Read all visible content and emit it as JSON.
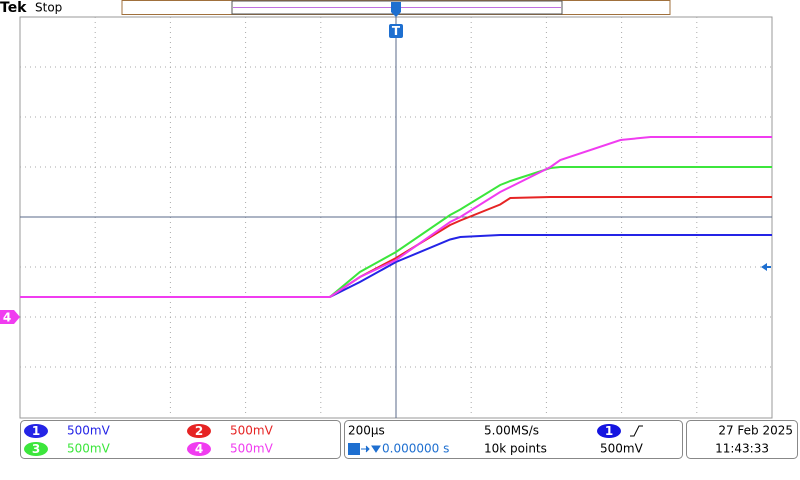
{
  "chart_data": {
    "type": "line",
    "x": [
      -1000,
      -176,
      -96,
      0,
      144,
      171,
      277,
      304,
      411,
      437,
      597,
      677,
      1000
    ],
    "xlim": [
      -1000,
      1000
    ],
    "ylim": [
      -4,
      4
    ],
    "series": [
      {
        "name": "1",
        "scale": "500mV",
        "color": "#2424e6",
        "values": [
          -1.6,
          -1.6,
          -1.3,
          -0.9,
          -0.45,
          -0.4,
          -0.36,
          -0.36,
          -0.36,
          -0.36,
          -0.36,
          -0.36,
          -0.36
        ]
      },
      {
        "name": "2",
        "scale": "500mV",
        "color": "#e62424",
        "values": [
          -1.6,
          -1.6,
          -1.2,
          -0.82,
          -0.16,
          -0.07,
          0.25,
          0.38,
          0.4,
          0.4,
          0.4,
          0.4,
          0.4
        ]
      },
      {
        "name": "3",
        "scale": "500mV",
        "color": "#3ce63c",
        "values": [
          -1.6,
          -1.6,
          -1.1,
          -0.7,
          0.04,
          0.15,
          0.64,
          0.72,
          0.98,
          1.0,
          1.0,
          1.0,
          1.0
        ]
      },
      {
        "name": "4",
        "scale": "500mV",
        "color": "#f03cf0",
        "values": [
          -1.6,
          -1.6,
          -1.2,
          -0.86,
          -0.1,
          0.0,
          0.5,
          0.6,
          1.0,
          1.14,
          1.54,
          1.6,
          1.6
        ]
      }
    ]
  },
  "ui": {
    "brand": "Tek",
    "status": "Stop",
    "trigger_marker": "T",
    "timebase": "200µs",
    "sample_rate": "5.00MS/s",
    "trigger_position": "0.000000 s",
    "record_length": "10k points",
    "trigger_source": "1",
    "trigger_level": "500mV",
    "date": "27 Feb  2025",
    "time": "11:43:33"
  }
}
